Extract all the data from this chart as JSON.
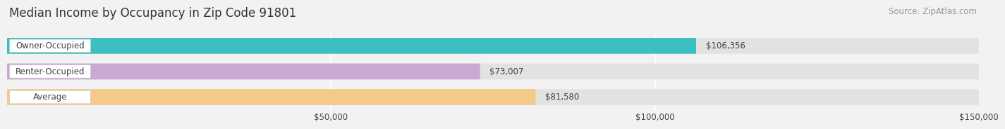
{
  "title": "Median Income by Occupancy in Zip Code 91801",
  "source": "Source: ZipAtlas.com",
  "categories": [
    "Owner-Occupied",
    "Renter-Occupied",
    "Average"
  ],
  "values": [
    106356,
    73007,
    81580
  ],
  "labels": [
    "$106,356",
    "$73,007",
    "$81,580"
  ],
  "bar_colors": [
    "#3bbfc0",
    "#c9a8d4",
    "#f5c98a"
  ],
  "xlim_max": 150000,
  "xticks": [
    50000,
    100000,
    150000
  ],
  "xticklabels": [
    "$50,000",
    "$100,000",
    "$150,000"
  ],
  "background_color": "#f2f2f2",
  "bar_bg_color": "#e2e2e2",
  "title_fontsize": 12,
  "source_fontsize": 8.5,
  "label_fontsize": 8.5,
  "cat_fontsize": 8.5,
  "tick_fontsize": 8.5,
  "bar_height": 0.62,
  "grid_color": "#ffffff",
  "text_color": "#444444",
  "source_color": "#999999"
}
